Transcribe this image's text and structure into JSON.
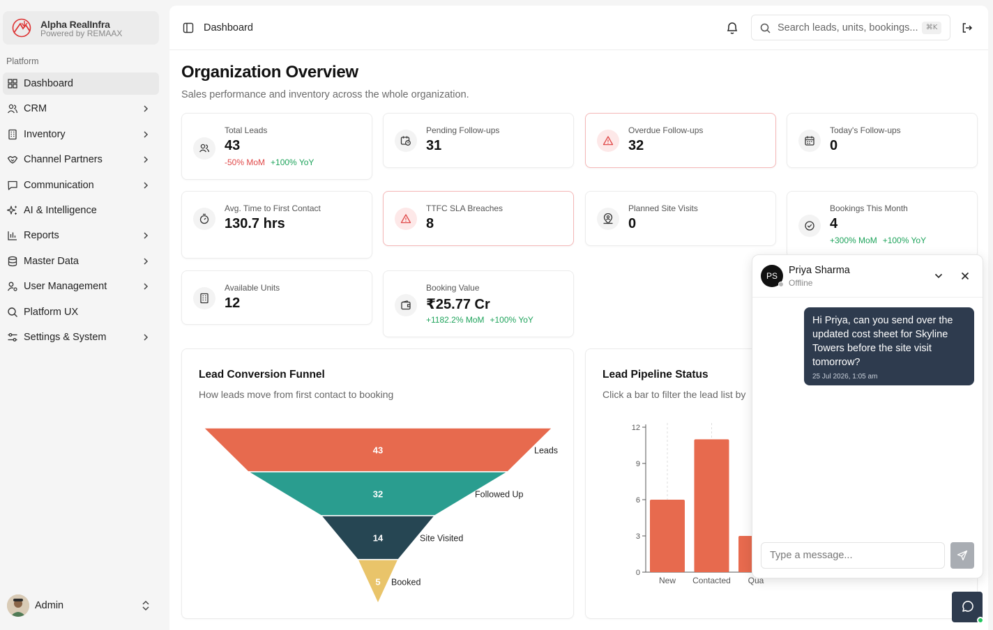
{
  "brand": {
    "name": "Alpha RealInfra",
    "sub": "Powered by REMAAX"
  },
  "sidebar": {
    "section": "Platform",
    "items": [
      {
        "label": "Dashboard",
        "icon": "dashboard-grid-icon",
        "chevron": false,
        "active": true
      },
      {
        "label": "CRM",
        "icon": "users-icon",
        "chevron": true
      },
      {
        "label": "Inventory",
        "icon": "building-icon",
        "chevron": true
      },
      {
        "label": "Channel Partners",
        "icon": "handshake-icon",
        "chevron": true
      },
      {
        "label": "Communication",
        "icon": "message-square-icon",
        "chevron": true
      },
      {
        "label": "AI & Intelligence",
        "icon": "sparkles-icon",
        "chevron": false
      },
      {
        "label": "Reports",
        "icon": "bar-chart-icon",
        "chevron": true
      },
      {
        "label": "Master Data",
        "icon": "database-icon",
        "chevron": true
      },
      {
        "label": "User Management",
        "icon": "user-cog-icon",
        "chevron": true
      },
      {
        "label": "Platform UX",
        "icon": "search-icon",
        "chevron": false
      },
      {
        "label": "Settings & System",
        "icon": "sliders-icon",
        "chevron": true
      }
    ],
    "user": {
      "name": "Admin"
    }
  },
  "topbar": {
    "breadcrumb": "Dashboard",
    "search_placeholder": "Search leads, units, bookings...",
    "search_shortcut": "⌘K"
  },
  "page": {
    "title": "Organization Overview",
    "subtitle": "Sales performance and inventory across the whole organization."
  },
  "kpis": {
    "total_leads": {
      "label": "Total Leads",
      "value": "43",
      "mom": "-50% MoM",
      "yoy": "+100% YoY"
    },
    "pending_followups": {
      "label": "Pending Follow-ups",
      "value": "31"
    },
    "overdue_followups": {
      "label": "Overdue Follow-ups",
      "value": "32"
    },
    "todays_followups": {
      "label": "Today's Follow-ups",
      "value": "0"
    },
    "avg_first_contact": {
      "label": "Avg. Time to First Contact",
      "value": "130.7 hrs"
    },
    "ttfc_breaches": {
      "label": "TTFC SLA Breaches",
      "value": "8"
    },
    "planned_visits": {
      "label": "Planned Site Visits",
      "value": "0"
    },
    "bookings_month": {
      "label": "Bookings This Month",
      "value": "4",
      "mom": "+300% MoM",
      "yoy": "+100% YoY"
    },
    "available_units": {
      "label": "Available Units",
      "value": "12"
    },
    "booking_value": {
      "label": "Booking Value",
      "value": "₹25.77 Cr",
      "mom": "+1182.2% MoM",
      "yoy": "+100% YoY"
    }
  },
  "funnel_panel": {
    "title": "Lead Conversion Funnel",
    "subtitle": "How leads move from first contact to booking"
  },
  "pipeline_panel": {
    "title": "Lead Pipeline Status",
    "subtitle": "Click a bar to filter the lead list by"
  },
  "chart_data": [
    {
      "type": "funnel",
      "categories": [
        "Leads",
        "Followed Up",
        "Site Visited",
        "Booked"
      ],
      "values": [
        43,
        32,
        14,
        5
      ],
      "colors": [
        "#e76a4e",
        "#2a9d8f",
        "#264653",
        "#e9c46a"
      ]
    },
    {
      "type": "bar",
      "categories": [
        "New",
        "Contacted",
        "Qua"
      ],
      "values": [
        6,
        11,
        3
      ],
      "yticks": [
        0,
        3,
        6,
        9,
        12
      ],
      "ylim": [
        0,
        12
      ],
      "color": "#e76a4e"
    }
  ],
  "chat": {
    "initials": "PS",
    "name": "Priya Sharma",
    "status": "Offline",
    "message": "Hi Priya, can you send over the updated cost sheet for Skyline Towers before the site visit tomorrow?",
    "time": "25 Jul 2026, 1:05 am",
    "placeholder": "Type a message..."
  }
}
